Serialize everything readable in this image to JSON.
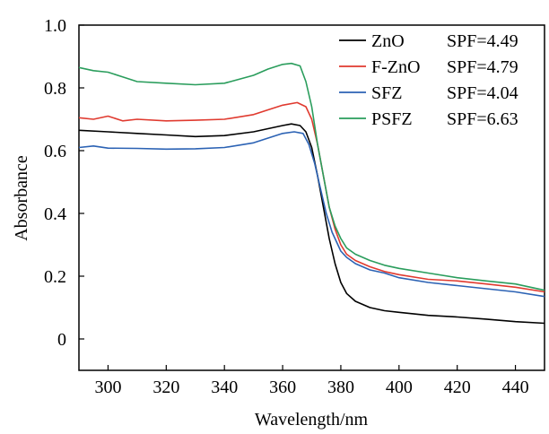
{
  "chart_data": {
    "type": "line",
    "title": "",
    "xlabel": "Wavelength/nm",
    "ylabel": "Absorbance",
    "xlim": [
      290,
      450
    ],
    "ylim": [
      -0.1,
      1.0
    ],
    "xticks": [
      300,
      320,
      340,
      360,
      380,
      400,
      420,
      440
    ],
    "yticks": [
      0,
      0.2,
      0.4,
      0.6,
      0.8,
      1.0
    ],
    "xtick_labels": [
      "300",
      "320",
      "340",
      "360",
      "380",
      "400",
      "420",
      "440"
    ],
    "ytick_labels": [
      "0",
      "0.2",
      "0.4",
      "0.6",
      "0.8",
      "1.0"
    ],
    "grid": false,
    "legend_position": "top-right",
    "series": [
      {
        "name": "ZnO",
        "spf": "SPF=4.49",
        "color": "#000000",
        "x": [
          290,
          300,
          310,
          320,
          330,
          340,
          350,
          355,
          360,
          363,
          366,
          368,
          370,
          372,
          374,
          376,
          378,
          380,
          382,
          385,
          390,
          395,
          400,
          410,
          420,
          430,
          440,
          450
        ],
        "y": [
          0.665,
          0.66,
          0.655,
          0.65,
          0.645,
          0.648,
          0.66,
          0.67,
          0.68,
          0.685,
          0.68,
          0.66,
          0.61,
          0.52,
          0.42,
          0.32,
          0.24,
          0.18,
          0.145,
          0.12,
          0.1,
          0.09,
          0.085,
          0.075,
          0.07,
          0.063,
          0.055,
          0.05
        ]
      },
      {
        "name": "F-ZnO",
        "spf": "SPF=4.79",
        "color": "#e03a2f",
        "x": [
          290,
          295,
          300,
          305,
          310,
          320,
          330,
          340,
          350,
          355,
          360,
          365,
          368,
          370,
          372,
          374,
          376,
          378,
          380,
          382,
          385,
          390,
          395,
          400,
          410,
          420,
          430,
          440,
          450
        ],
        "y": [
          0.705,
          0.7,
          0.71,
          0.695,
          0.7,
          0.695,
          0.697,
          0.7,
          0.715,
          0.73,
          0.745,
          0.753,
          0.74,
          0.7,
          0.62,
          0.52,
          0.42,
          0.35,
          0.3,
          0.27,
          0.25,
          0.23,
          0.215,
          0.205,
          0.19,
          0.185,
          0.175,
          0.165,
          0.15
        ]
      },
      {
        "name": "SFZ",
        "spf": "SPF=4.04",
        "color": "#2b62b4",
        "x": [
          290,
          295,
          300,
          310,
          320,
          330,
          340,
          350,
          355,
          360,
          364,
          367,
          369,
          371,
          373,
          375,
          377,
          380,
          382,
          385,
          390,
          395,
          400,
          410,
          420,
          430,
          440,
          450
        ],
        "y": [
          0.61,
          0.615,
          0.608,
          0.607,
          0.605,
          0.606,
          0.61,
          0.625,
          0.64,
          0.655,
          0.66,
          0.655,
          0.62,
          0.56,
          0.48,
          0.4,
          0.34,
          0.28,
          0.26,
          0.24,
          0.22,
          0.21,
          0.195,
          0.18,
          0.17,
          0.16,
          0.15,
          0.135
        ]
      },
      {
        "name": "PSFZ",
        "spf": "SPF=6.63",
        "color": "#2a9d5c",
        "x": [
          290,
          295,
          300,
          305,
          310,
          320,
          330,
          340,
          350,
          355,
          360,
          363,
          366,
          368,
          370,
          372,
          374,
          376,
          378,
          380,
          382,
          385,
          390,
          395,
          400,
          410,
          420,
          430,
          440,
          450
        ],
        "y": [
          0.865,
          0.855,
          0.85,
          0.835,
          0.82,
          0.815,
          0.81,
          0.815,
          0.84,
          0.86,
          0.875,
          0.878,
          0.87,
          0.82,
          0.74,
          0.62,
          0.52,
          0.42,
          0.36,
          0.32,
          0.29,
          0.27,
          0.25,
          0.235,
          0.225,
          0.21,
          0.195,
          0.185,
          0.175,
          0.155
        ]
      }
    ]
  }
}
